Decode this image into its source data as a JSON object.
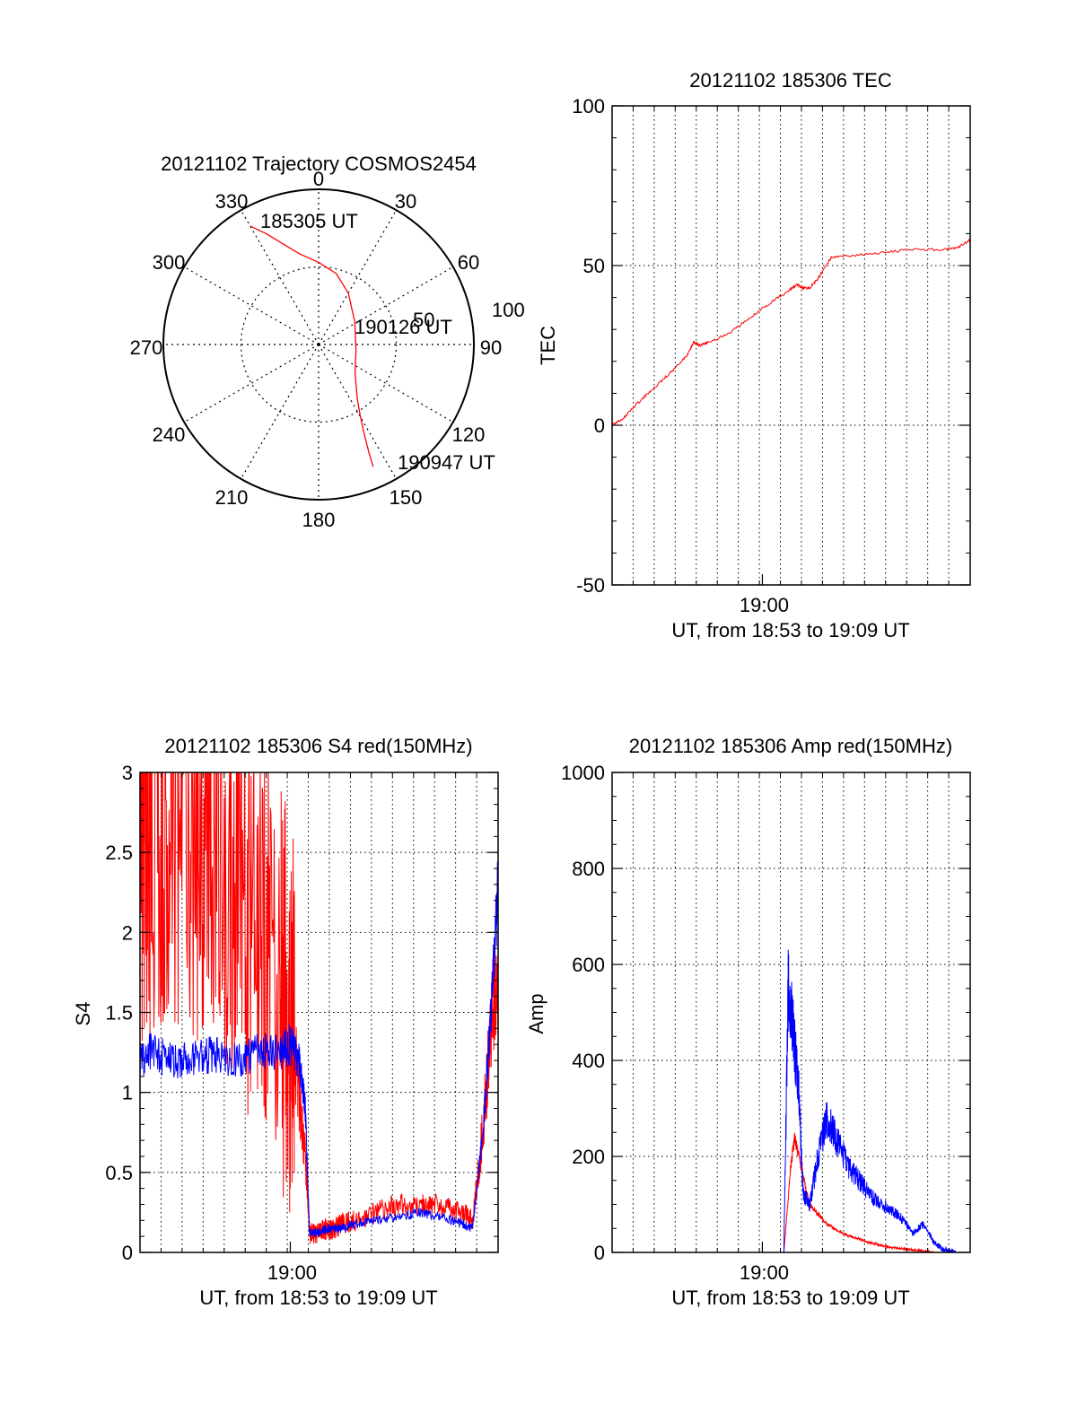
{
  "colors": {
    "red": "#ff0000",
    "blue": "#0000ff",
    "axis": "#000000",
    "grid": "#000000"
  },
  "chart_data": [
    {
      "type": "polar",
      "title": "20121102 Trajectory COSMOS2454",
      "angle_labels": [
        "0",
        "30",
        "60",
        "90",
        "120",
        "150",
        "180",
        "210",
        "240",
        "270",
        "300",
        "330"
      ],
      "radial_labels": [
        "50",
        "100"
      ],
      "grid": true,
      "series": [
        {
          "color": "red",
          "points": [
            [
              330,
              90
            ],
            [
              335,
              80
            ],
            [
              340,
              71
            ],
            [
              348,
              61
            ],
            [
              0,
              54
            ],
            [
              14,
              48
            ],
            [
              30,
              39
            ],
            [
              58,
              28
            ],
            [
              100,
              25
            ],
            [
              127,
              30
            ],
            [
              144,
              43
            ],
            [
              150,
              55
            ],
            [
              153,
              66
            ],
            [
              155,
              78
            ],
            [
              156,
              88
            ]
          ]
        }
      ],
      "annotations": [
        "185305 UT",
        "190126 UT",
        "190947 UT"
      ]
    },
    {
      "type": "line",
      "title": "20121102 185306 TEC",
      "ylabel": "TEC",
      "xlabel": "UT, from 18:53 to 19:09 UT",
      "x_tick_labels": [
        "19:00"
      ],
      "y_tick_labels": [
        "-50",
        "0",
        "50",
        "100"
      ],
      "xlim": [
        0,
        16.68
      ],
      "ylim": [
        -50,
        100
      ],
      "grid": true,
      "series": [
        {
          "color": "red",
          "x": [
            0,
            0.5,
            1.2,
            2.0,
            2.8,
            3.5,
            3.8,
            4.1,
            4.5,
            5.5,
            6.5,
            7.3,
            8.2,
            8.6,
            8.9,
            9.2,
            9.6,
            10.2,
            11.0,
            12.5,
            14.0,
            15.5,
            16.2,
            16.68
          ],
          "y": [
            0,
            2,
            7,
            12,
            17,
            22,
            26,
            25,
            26,
            29,
            34,
            38,
            42,
            44,
            43,
            43,
            46,
            52.5,
            53,
            54,
            55,
            55,
            56,
            58
          ]
        }
      ]
    },
    {
      "type": "line",
      "title": "20121102 185306 S4 red(150MHz)",
      "ylabel": "S4",
      "xlabel": "UT, from 18:53 to 19:09 UT",
      "x_tick_labels": [
        "19:00"
      ],
      "y_tick_labels": [
        "0",
        "0.5",
        "1",
        "1.5",
        "2",
        "2.5",
        "3"
      ],
      "xlim": [
        0,
        16.68
      ],
      "ylim": [
        0,
        3
      ],
      "grid": true,
      "series": [
        {
          "color": "red",
          "x": [
            0,
            0.5,
            1.5,
            2.5,
            3.5,
            4.5,
            5.5,
            6.5,
            7.0,
            7.4,
            7.7,
            7.9,
            8.3,
            8.7,
            9.0,
            9.4,
            10,
            11,
            12,
            13,
            14,
            15,
            15.5,
            16,
            16.3,
            16.68
          ],
          "y": [
            2.5,
            2.6,
            2.7,
            2.6,
            2.5,
            2.3,
            2.0,
            1.7,
            1.5,
            1.0,
            0.6,
            0.12,
            0.12,
            0.15,
            0.15,
            0.18,
            0.2,
            0.25,
            0.3,
            0.3,
            0.3,
            0.25,
            0.2,
            0.8,
            1.3,
            1.8
          ]
        },
        {
          "color": "blue",
          "x": [
            0,
            0.5,
            1.5,
            2.5,
            3.5,
            4.5,
            5.5,
            6.5,
            7.0,
            7.4,
            7.7,
            7.9,
            8.3,
            8.7,
            9.0,
            9.4,
            10,
            11,
            12,
            13,
            14,
            15,
            15.5,
            16,
            16.3,
            16.68
          ],
          "y": [
            1.2,
            1.25,
            1.2,
            1.2,
            1.25,
            1.2,
            1.25,
            1.25,
            1.3,
            1.2,
            0.9,
            0.12,
            0.12,
            0.15,
            0.15,
            0.15,
            0.18,
            0.2,
            0.22,
            0.25,
            0.22,
            0.18,
            0.15,
            0.8,
            1.4,
            2.3
          ]
        }
      ]
    },
    {
      "type": "line",
      "title": "20121102 185306 Amp red(150MHz)",
      "ylabel": "Amp",
      "xlabel": "UT, from 18:53 to 19:09 UT",
      "x_tick_labels": [
        "19:00"
      ],
      "y_tick_labels": [
        "0",
        "200",
        "400",
        "600",
        "800",
        "1000"
      ],
      "xlim": [
        0,
        16.68
      ],
      "ylim": [
        0,
        1000
      ],
      "grid": true,
      "series": [
        {
          "color": "red",
          "x": [
            0,
            8.0,
            8.3,
            8.5,
            8.8,
            9.2,
            9.6,
            10.0,
            10.5,
            11.0,
            11.5,
            12.0,
            12.5,
            13.0,
            13.5,
            14.0,
            14.5,
            15.0,
            16.0,
            16.68
          ],
          "y": [
            0,
            0,
            170,
            240,
            180,
            100,
            80,
            60,
            45,
            35,
            28,
            20,
            15,
            10,
            8,
            5,
            3,
            0,
            0,
            0
          ]
        },
        {
          "color": "blue",
          "x": [
            0,
            8.0,
            8.2,
            8.4,
            8.7,
            8.9,
            9.2,
            9.6,
            10.0,
            10.5,
            11.0,
            11.5,
            12.0,
            12.5,
            13.0,
            13.5,
            14.0,
            14.5,
            15.0,
            15.5,
            16.0,
            16.68
          ],
          "y": [
            0,
            0,
            550,
            480,
            330,
            120,
            100,
            200,
            280,
            230,
            180,
            150,
            120,
            100,
            90,
            70,
            40,
            60,
            20,
            5,
            0,
            0
          ]
        }
      ]
    }
  ]
}
